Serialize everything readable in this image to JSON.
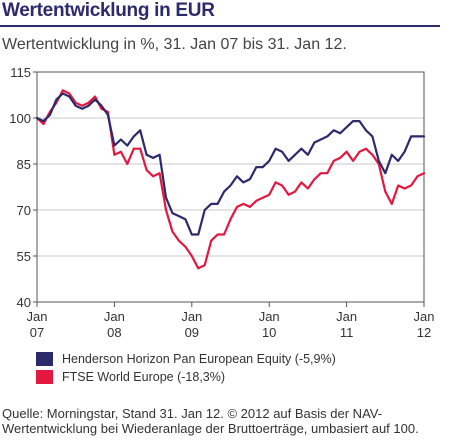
{
  "title": "Wertentwicklung in EUR",
  "subtitle": "Wertentwicklung in %, 31. Jan 07 bis 31. Jan 12.",
  "source": "Quelle: Morningstar, Stand 31. Jan 12. © 2012 auf Basis der NAV-Wertentwicklung bei Wiederanlage der Bruttoerträge, umbasiert auf 100.",
  "colors": {
    "henderson": "#2b2a6b",
    "ftse": "#e3173f",
    "title": "#2b2a6b"
  },
  "chart_data": {
    "type": "line",
    "ylim": [
      40,
      115
    ],
    "yticks": [
      40,
      55,
      70,
      85,
      100,
      115
    ],
    "xlim": [
      0,
      60
    ],
    "xticks": [
      {
        "m": 0,
        "l1": "Jan",
        "l2": "07"
      },
      {
        "m": 12,
        "l1": "Jan",
        "l2": "08"
      },
      {
        "m": 24,
        "l1": "Jan",
        "l2": "09"
      },
      {
        "m": 36,
        "l1": "Jan",
        "l2": "10"
      },
      {
        "m": 48,
        "l1": "Jan",
        "l2": "11"
      },
      {
        "m": 60,
        "l1": "Jan",
        "l2": "12"
      }
    ],
    "grid": "horizontal",
    "legend_position": "bottom-left",
    "series": [
      {
        "name": "Henderson Horizon Pan European Equity (-5,9%)",
        "color": "#2b2a6b",
        "values": [
          100,
          99,
          101,
          106,
          108,
          107,
          104,
          103,
          104,
          106,
          104,
          101,
          91,
          93,
          91,
          94,
          96,
          88,
          87,
          88,
          74,
          69,
          68,
          67,
          62,
          62,
          70,
          72,
          72,
          76,
          78,
          81,
          79,
          80,
          84,
          84,
          86,
          90,
          89,
          86,
          88,
          90,
          88,
          92,
          93,
          94,
          96,
          95,
          97,
          99,
          99,
          96,
          94,
          86,
          82,
          88,
          86,
          89,
          94,
          94,
          94
        ]
      },
      {
        "name": "FTSE World Europe (-18,3%)",
        "color": "#e3173f",
        "values": [
          100,
          98,
          102,
          105,
          109,
          108,
          105,
          104,
          105,
          107,
          103,
          102,
          88,
          89,
          85,
          90,
          90,
          83,
          81,
          82,
          70,
          63,
          60,
          58,
          55,
          51,
          52,
          60,
          62,
          62,
          67,
          71,
          72,
          71,
          73,
          74,
          75,
          79,
          78,
          75,
          76,
          79,
          77,
          80,
          82,
          82,
          86,
          87,
          89,
          86,
          89,
          90,
          88,
          85,
          76,
          72,
          78,
          77,
          78,
          81,
          82
        ]
      }
    ]
  }
}
